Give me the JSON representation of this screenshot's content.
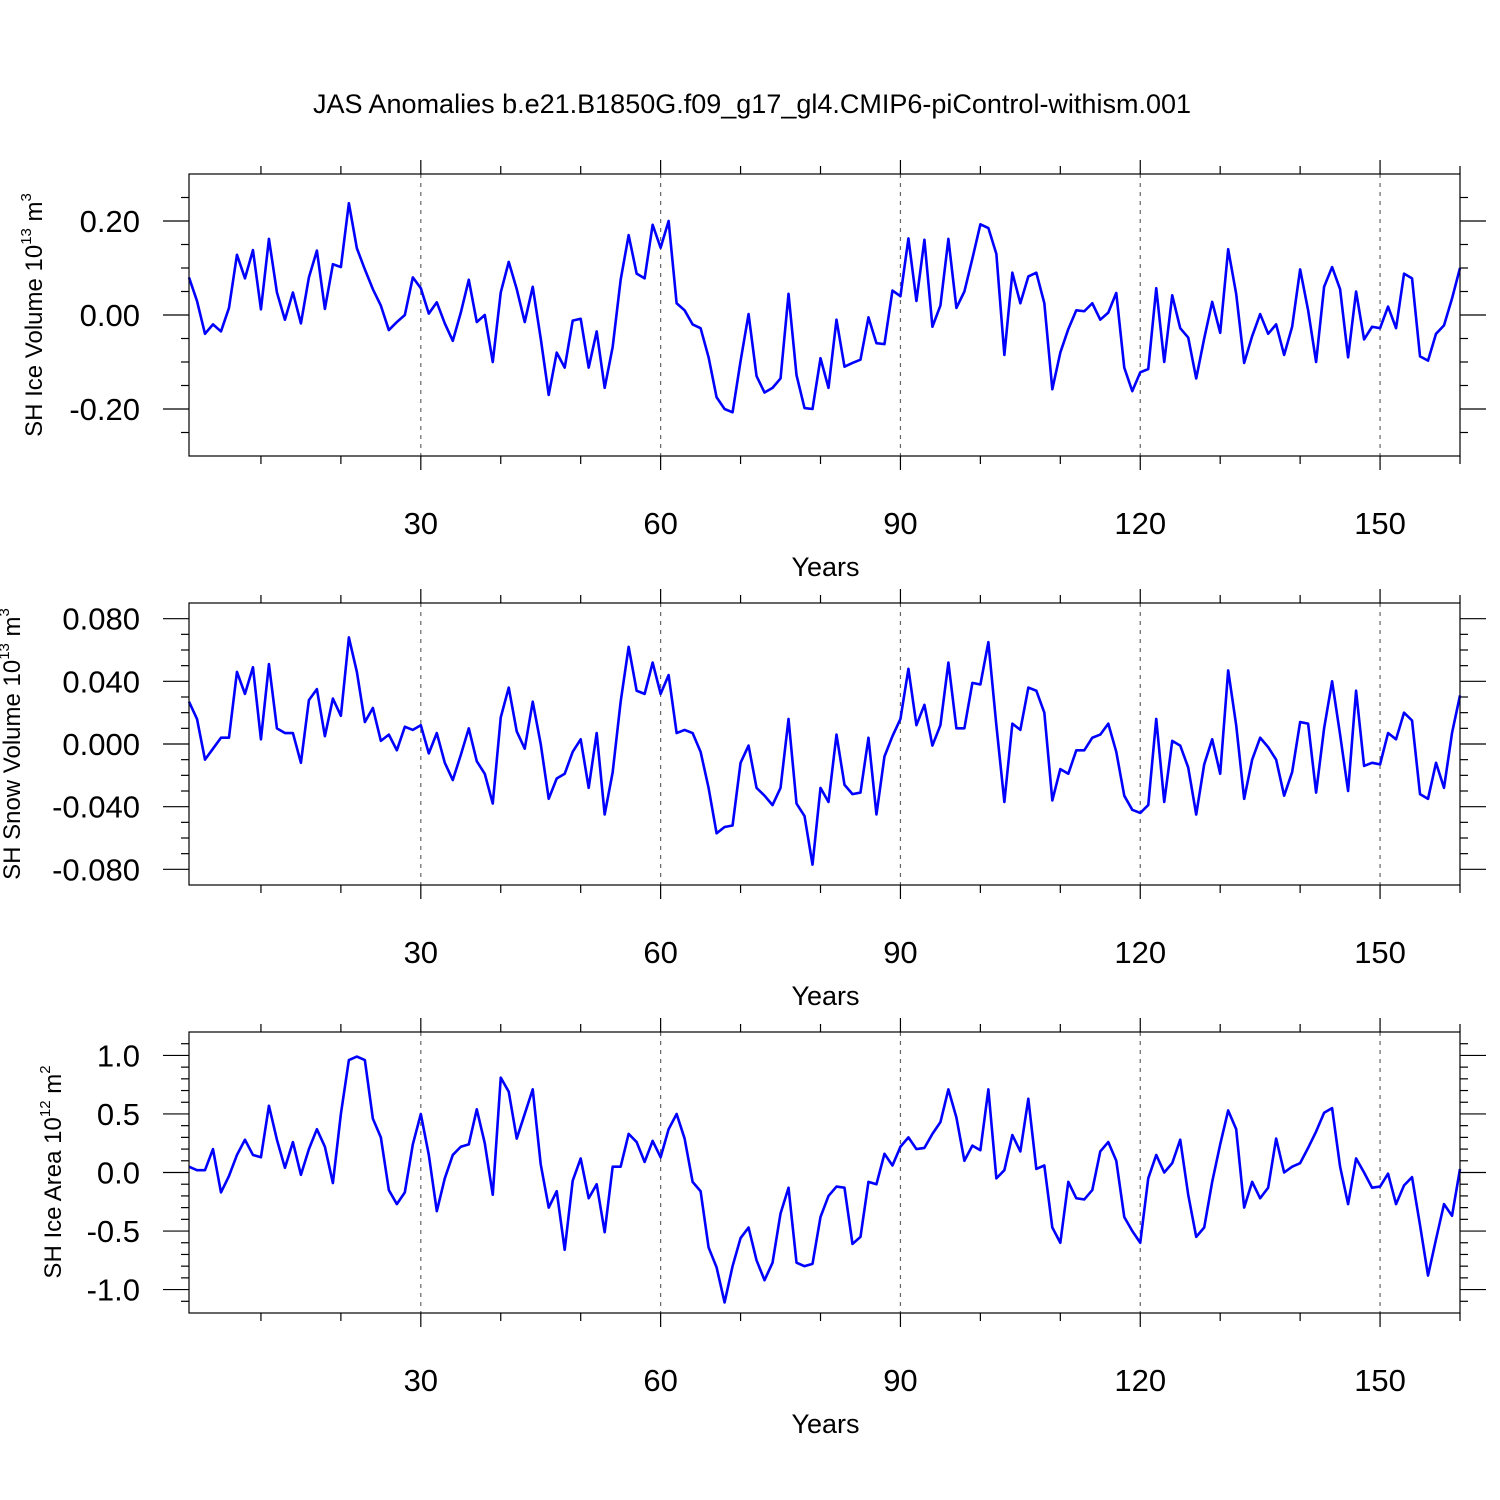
{
  "title": "JAS Anomalies b.e21.B1850G.f09_g17_gl4.CMIP6-piControl-withism.001",
  "colors": {
    "series": "#0000ff",
    "axes": "#000000",
    "grid": "#666666",
    "background": "#ffffff"
  },
  "chart_data": [
    {
      "type": "line",
      "xlabel": "Years",
      "ylabel": {
        "text": "SH Ice Volume 10",
        "exp": "13",
        "unit": " m",
        "unit_exp": "3"
      },
      "xlim": [
        1,
        160
      ],
      "ylim": [
        -0.3,
        0.3
      ],
      "xticks": [
        30,
        60,
        90,
        120,
        150
      ],
      "xtick_labels": [
        "30",
        "60",
        "90",
        "120",
        "150"
      ],
      "yticks": [
        -0.2,
        0.0,
        0.2
      ],
      "ytick_labels": [
        "-0.20",
        "0.00",
        "0.20"
      ],
      "minor_x_step": 10,
      "minor_y_step": 0.05,
      "grid": "x-dashed",
      "x_start": 1,
      "values": [
        0.08,
        0.03,
        -0.04,
        -0.02,
        -0.035,
        0.015,
        0.128,
        0.078,
        0.138,
        0.012,
        0.162,
        0.048,
        -0.01,
        0.048,
        -0.018,
        0.08,
        0.137,
        0.013,
        0.108,
        0.102,
        0.238,
        0.142,
        0.097,
        0.055,
        0.02,
        -0.032,
        -0.015,
        0.0,
        0.08,
        0.057,
        0.003,
        0.027,
        -0.018,
        -0.055,
        0.005,
        0.075,
        -0.015,
        0.0,
        -0.1,
        0.048,
        0.113,
        0.055,
        -0.015,
        0.06,
        -0.05,
        -0.17,
        -0.08,
        -0.112,
        -0.012,
        -0.008,
        -0.112,
        -0.035,
        -0.155,
        -0.068,
        0.075,
        0.17,
        0.088,
        0.078,
        0.192,
        0.143,
        0.2,
        0.025,
        0.01,
        -0.02,
        -0.028,
        -0.09,
        -0.175,
        -0.2,
        -0.207,
        -0.098,
        0.002,
        -0.13,
        -0.165,
        -0.155,
        -0.135,
        0.045,
        -0.128,
        -0.198,
        -0.2,
        -0.092,
        -0.155,
        -0.01,
        -0.11,
        -0.102,
        -0.095,
        -0.005,
        -0.06,
        -0.062,
        0.052,
        0.04,
        0.163,
        0.03,
        0.16,
        -0.025,
        0.02,
        0.162,
        0.015,
        0.05,
        0.12,
        0.193,
        0.185,
        0.13,
        -0.085,
        0.09,
        0.025,
        0.082,
        0.09,
        0.025,
        -0.158,
        -0.08,
        -0.03,
        0.01,
        0.008,
        0.025,
        -0.01,
        0.005,
        0.047,
        -0.112,
        -0.162,
        -0.122,
        -0.115,
        0.057,
        -0.1,
        0.042,
        -0.028,
        -0.048,
        -0.135,
        -0.05,
        0.028,
        -0.038,
        0.14,
        0.045,
        -0.102,
        -0.045,
        0.002,
        -0.04,
        -0.02,
        -0.085,
        -0.025,
        0.097,
        0.01,
        -0.1,
        0.06,
        0.102,
        0.055,
        -0.09,
        0.05,
        -0.052,
        -0.025,
        -0.028,
        0.018,
        -0.028,
        0.088,
        0.078,
        -0.088,
        -0.097,
        -0.04,
        -0.022,
        0.035,
        0.1
      ]
    },
    {
      "type": "line",
      "xlabel": "Years",
      "ylabel": {
        "text": "SH Snow Volume 10",
        "exp": "13",
        "unit": " m",
        "unit_exp": "3"
      },
      "xlim": [
        1,
        160
      ],
      "ylim": [
        -0.09,
        0.09
      ],
      "xticks": [
        30,
        60,
        90,
        120,
        150
      ],
      "xtick_labels": [
        "30",
        "60",
        "90",
        "120",
        "150"
      ],
      "yticks": [
        -0.08,
        -0.04,
        0.0,
        0.04,
        0.08
      ],
      "ytick_labels": [
        "-0.080",
        "-0.040",
        "0.000",
        "0.040",
        "0.080"
      ],
      "minor_x_step": 10,
      "minor_y_step": 0.01,
      "grid": "x-dashed",
      "x_start": 1,
      "values": [
        0.027,
        0.016,
        -0.01,
        -0.003,
        0.004,
        0.004,
        0.046,
        0.032,
        0.049,
        0.003,
        0.051,
        0.01,
        0.007,
        0.007,
        -0.012,
        0.028,
        0.035,
        0.005,
        0.029,
        0.018,
        0.068,
        0.046,
        0.014,
        0.023,
        0.002,
        0.006,
        -0.004,
        0.011,
        0.009,
        0.012,
        -0.006,
        0.007,
        -0.012,
        -0.023,
        -0.007,
        0.01,
        -0.011,
        -0.019,
        -0.038,
        0.017,
        0.036,
        0.008,
        -0.003,
        0.027,
        0.0,
        -0.035,
        -0.022,
        -0.019,
        -0.005,
        0.003,
        -0.028,
        0.007,
        -0.045,
        -0.018,
        0.027,
        0.062,
        0.034,
        0.032,
        0.052,
        0.032,
        0.044,
        0.007,
        0.009,
        0.007,
        -0.005,
        -0.028,
        -0.057,
        -0.053,
        -0.052,
        -0.012,
        -0.001,
        -0.028,
        -0.033,
        -0.039,
        -0.028,
        0.016,
        -0.038,
        -0.046,
        -0.077,
        -0.028,
        -0.037,
        0.006,
        -0.026,
        -0.032,
        -0.031,
        0.004,
        -0.045,
        -0.008,
        0.005,
        0.016,
        0.048,
        0.012,
        0.025,
        -0.001,
        0.012,
        0.052,
        0.01,
        0.01,
        0.039,
        0.038,
        0.065,
        0.012,
        -0.037,
        0.013,
        0.009,
        0.036,
        0.034,
        0.02,
        -0.036,
        -0.016,
        -0.019,
        -0.004,
        -0.004,
        0.004,
        0.006,
        0.013,
        -0.005,
        -0.033,
        -0.042,
        -0.044,
        -0.039,
        0.016,
        -0.037,
        0.002,
        -0.001,
        -0.015,
        -0.045,
        -0.013,
        0.003,
        -0.019,
        0.047,
        0.012,
        -0.035,
        -0.01,
        0.004,
        -0.002,
        -0.01,
        -0.033,
        -0.018,
        0.014,
        0.013,
        -0.031,
        0.01,
        0.04,
        0.006,
        -0.03,
        0.034,
        -0.014,
        -0.012,
        -0.013,
        0.007,
        0.003,
        0.02,
        0.015,
        -0.032,
        -0.035,
        -0.012,
        -0.028,
        0.007,
        0.031
      ]
    },
    {
      "type": "line",
      "xlabel": "Years",
      "ylabel": {
        "text": "SH Ice Area 10",
        "exp": "12",
        "unit": " m",
        "unit_exp": "2"
      },
      "xlim": [
        1,
        160
      ],
      "ylim": [
        -1.2,
        1.2
      ],
      "xticks": [
        30,
        60,
        90,
        120,
        150
      ],
      "xtick_labels": [
        "30",
        "60",
        "90",
        "120",
        "150"
      ],
      "yticks": [
        -1.0,
        -0.5,
        0.0,
        0.5,
        1.0
      ],
      "ytick_labels": [
        "-1.0",
        "-0.5",
        "0.0",
        "0.5",
        "1.0"
      ],
      "minor_x_step": 10,
      "minor_y_step": 0.1,
      "grid": "x-dashed",
      "x_start": 1,
      "values": [
        0.05,
        0.02,
        0.02,
        0.2,
        -0.17,
        -0.03,
        0.15,
        0.28,
        0.15,
        0.13,
        0.57,
        0.28,
        0.04,
        0.26,
        -0.02,
        0.2,
        0.37,
        0.22,
        -0.09,
        0.5,
        0.96,
        0.99,
        0.96,
        0.46,
        0.3,
        -0.15,
        -0.27,
        -0.17,
        0.24,
        0.5,
        0.15,
        -0.33,
        -0.05,
        0.15,
        0.22,
        0.24,
        0.54,
        0.25,
        -0.19,
        0.81,
        0.69,
        0.29,
        0.5,
        0.71,
        0.07,
        -0.3,
        -0.16,
        -0.66,
        -0.07,
        0.12,
        -0.22,
        -0.1,
        -0.51,
        0.05,
        0.05,
        0.33,
        0.26,
        0.09,
        0.27,
        0.13,
        0.37,
        0.5,
        0.29,
        -0.08,
        -0.16,
        -0.64,
        -0.81,
        -1.11,
        -0.8,
        -0.56,
        -0.47,
        -0.75,
        -0.92,
        -0.77,
        -0.35,
        -0.13,
        -0.77,
        -0.8,
        -0.78,
        -0.38,
        -0.2,
        -0.12,
        -0.13,
        -0.61,
        -0.55,
        -0.08,
        -0.1,
        0.16,
        0.06,
        0.22,
        0.3,
        0.2,
        0.21,
        0.33,
        0.43,
        0.71,
        0.47,
        0.1,
        0.23,
        0.19,
        0.71,
        -0.05,
        0.02,
        0.32,
        0.18,
        0.63,
        0.03,
        0.06,
        -0.47,
        -0.6,
        -0.08,
        -0.22,
        -0.23,
        -0.15,
        0.18,
        0.26,
        0.1,
        -0.38,
        -0.5,
        -0.6,
        -0.05,
        0.15,
        0.0,
        0.08,
        0.28,
        -0.19,
        -0.55,
        -0.47,
        -0.08,
        0.24,
        0.53,
        0.37,
        -0.3,
        -0.08,
        -0.22,
        -0.13,
        0.29,
        0.0,
        0.05,
        0.08,
        0.21,
        0.35,
        0.51,
        0.55,
        0.05,
        -0.27,
        0.12,
        0.0,
        -0.13,
        -0.12,
        -0.01,
        -0.27,
        -0.11,
        -0.04,
        -0.45,
        -0.88,
        -0.57,
        -0.27,
        -0.37,
        0.03
      ]
    }
  ]
}
